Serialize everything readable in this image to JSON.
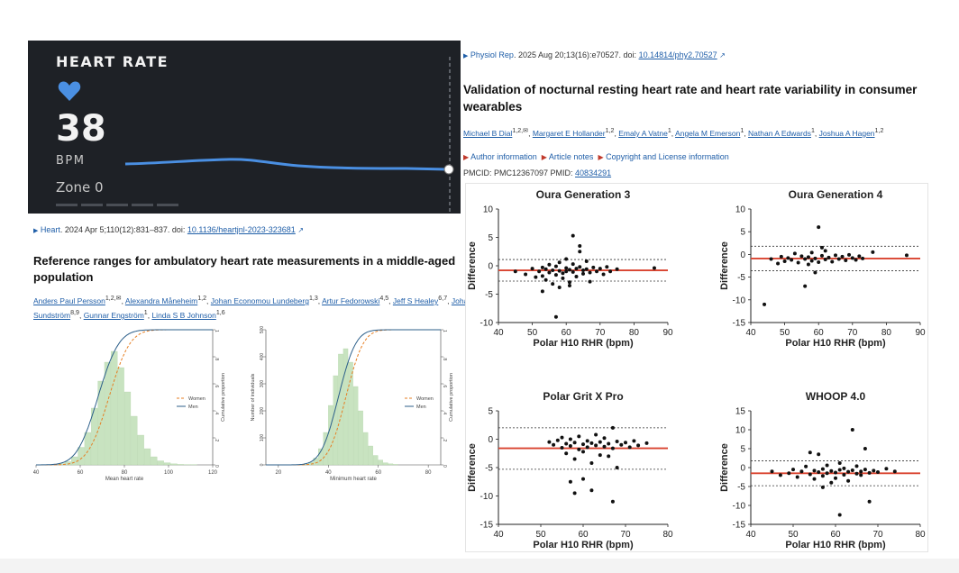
{
  "widget": {
    "title": "HEART RATE",
    "value": "38",
    "unit": "BPM",
    "zone": "Zone 0",
    "accent": "#4a8fe2"
  },
  "left_article": {
    "journal": "Heart",
    "citation": ". 2024 Apr 5;110(12):831–837. doi: ",
    "doi": "10.1136/heartjnl-2023-323681",
    "title": "Reference ranges for ambulatory heart rate measurements in a middle-aged population",
    "authors_line1": [
      "Anders Paul Persson",
      "Alexandra Måneheim",
      "Johan Economou Lundeberg",
      "Artur Fedorowski",
      "Jeff S Healey",
      "Johan"
    ],
    "authors_line1_sups": [
      "1,2,✉",
      "1,2",
      "1,3",
      "4,5",
      "6,7",
      ""
    ],
    "authors_line2": [
      "Sundström",
      "Gunnar Engström",
      "Linda S B Johnson"
    ],
    "authors_line2_sups": [
      "8,9",
      "1",
      "1,6"
    ]
  },
  "right_article": {
    "journal": "Physiol Rep",
    "citation": ". 2025 Aug 20;13(16):e70527. doi: ",
    "doi": "10.14814/phy2.70527",
    "title_line1": "Validation of nocturnal resting heart rate and heart rate variability in consumer",
    "title_line2": "wearables",
    "authors": [
      "Michael B Dial",
      "Margaret E Hollander",
      "Emaly A Vatne",
      "Angela M Emerson",
      "Nathan A Edwards",
      "Joshua A Hagen"
    ],
    "author_sups": [
      "1,2,✉",
      "1,2",
      "1",
      "1",
      "1",
      "1,2"
    ],
    "links": [
      "Author information",
      "Article notes",
      "Copyright and License information"
    ],
    "pmcid": "PMCID: PMC12367097  PMID: ",
    "pmid": "40834291"
  },
  "chart_data": [
    {
      "type": "bar+line",
      "xlabel": "Mean heart rate",
      "ylabel": "Number of individuals",
      "y2label": "Cumulative proportion",
      "xticks": [
        "40",
        "60",
        "80",
        "100",
        "120"
      ],
      "yticks": [
        "0",
        "100",
        "200",
        "300",
        "400",
        "500"
      ],
      "y2ticks": [
        "0",
        ".2",
        ".4",
        ".6",
        ".8",
        "1"
      ],
      "xlim": [
        40,
        120
      ],
      "ylim": [
        0,
        500
      ],
      "histogram": {
        "bin_start": 50,
        "bin_width": 3,
        "values": [
          5,
          12,
          30,
          65,
          120,
          210,
          310,
          380,
          420,
          360,
          270,
          180,
          110,
          60,
          30,
          15,
          8,
          4,
          2,
          1,
          1,
          0
        ]
      },
      "series": [
        {
          "name": "Women",
          "color": "#e67e22",
          "mean": 73,
          "sd": 7.5
        },
        {
          "name": "Men",
          "color": "#2c5f8a",
          "mean": 68,
          "sd": 7.5
        }
      ]
    },
    {
      "type": "bar+line",
      "xlabel": "Minimum heart rate",
      "ylabel": "Number of individuals",
      "y2label": "Cumulative proportion",
      "xticks": [
        "20",
        "40",
        "60",
        "80"
      ],
      "yticks": [
        "0",
        "100",
        "200",
        "300",
        "400",
        "500"
      ],
      "y2ticks": [
        "0",
        ".2",
        ".4",
        ".6",
        ".8",
        "1"
      ],
      "xlim": [
        15,
        85
      ],
      "ylim": [
        0,
        500
      ],
      "histogram": {
        "bin_start": 30,
        "bin_width": 2,
        "values": [
          3,
          10,
          25,
          60,
          120,
          220,
          330,
          410,
          430,
          380,
          290,
          200,
          120,
          70,
          35,
          18,
          8,
          4,
          2
        ]
      },
      "series": [
        {
          "name": "Women",
          "color": "#e67e22",
          "mean": 47,
          "sd": 5.5
        },
        {
          "name": "Men",
          "color": "#2c5f8a",
          "mean": 44,
          "sd": 5.5
        }
      ]
    },
    {
      "type": "scatter",
      "title": "Oura Generation 3",
      "xlabel": "Polar H10 RHR (bpm)",
      "ylabel": "Difference",
      "xlim": [
        40,
        90
      ],
      "ylim": [
        -10,
        10
      ],
      "xticks": [
        "40",
        "50",
        "60",
        "70",
        "80",
        "90"
      ],
      "yticks": [
        "10",
        "5",
        "0",
        "-5",
        "-10"
      ],
      "bias": -0.8,
      "loa": [
        1.1,
        -2.7
      ],
      "points": [
        [
          45,
          -1
        ],
        [
          48,
          -1.5
        ],
        [
          50,
          -0.5
        ],
        [
          51,
          -2
        ],
        [
          52,
          -1
        ],
        [
          53,
          -0.3
        ],
        [
          53,
          -1.8
        ],
        [
          54,
          -0.6
        ],
        [
          54,
          -2.5
        ],
        [
          55,
          -1.2
        ],
        [
          55,
          0.2
        ],
        [
          56,
          -0.8
        ],
        [
          56,
          -3.2
        ],
        [
          57,
          -0.1
        ],
        [
          57,
          -1.6
        ],
        [
          58,
          -0.9
        ],
        [
          58,
          0.6
        ],
        [
          59,
          -1.3
        ],
        [
          59,
          -2.2
        ],
        [
          60,
          -0.4
        ],
        [
          60,
          -1
        ],
        [
          60,
          1.2
        ],
        [
          61,
          -0.7
        ],
        [
          61,
          -3.5
        ],
        [
          62,
          -1.1
        ],
        [
          62,
          0.3
        ],
        [
          63,
          -0.5
        ],
        [
          63,
          -1.9
        ],
        [
          64,
          -0.2
        ],
        [
          64,
          2.5
        ],
        [
          65,
          -0.8
        ],
        [
          65,
          -1.4
        ],
        [
          66,
          -0.6
        ],
        [
          66,
          0.8
        ],
        [
          67,
          -1.2
        ],
        [
          67,
          -2.8
        ],
        [
          68,
          -0.3
        ],
        [
          69,
          -1
        ],
        [
          70,
          -0.5
        ],
        [
          71,
          -1.5
        ],
        [
          72,
          -0.2
        ],
        [
          73,
          -1
        ],
        [
          75,
          -0.6
        ],
        [
          57,
          -9
        ],
        [
          62,
          5.3
        ],
        [
          64,
          3.5
        ],
        [
          86,
          -0.4
        ],
        [
          53,
          -4.5
        ],
        [
          58,
          -3.8
        ],
        [
          61,
          -2.9
        ]
      ]
    },
    {
      "type": "scatter",
      "title": "Oura Generation 4",
      "xlabel": "Polar H10 RHR (bpm)",
      "ylabel": "Difference",
      "xlim": [
        40,
        90
      ],
      "ylim": [
        -15,
        10
      ],
      "xticks": [
        "40",
        "50",
        "60",
        "70",
        "80",
        "90"
      ],
      "yticks": [
        "10",
        "5",
        "0",
        "-5",
        "-10",
        "-15"
      ],
      "bias": -0.9,
      "loa": [
        1.8,
        -3.6
      ],
      "points": [
        [
          44,
          -11
        ],
        [
          46,
          -1
        ],
        [
          48,
          -2
        ],
        [
          49,
          -0.5
        ],
        [
          50,
          -1.5
        ],
        [
          51,
          -0.8
        ],
        [
          52,
          -1.2
        ],
        [
          53,
          0.2
        ],
        [
          54,
          -1.8
        ],
        [
          55,
          -0.4
        ],
        [
          56,
          -1
        ],
        [
          57,
          -0.6
        ],
        [
          57,
          -2.2
        ],
        [
          58,
          -1.4
        ],
        [
          58,
          0.4
        ],
        [
          59,
          -0.9
        ],
        [
          60,
          6
        ],
        [
          60,
          -1.7
        ],
        [
          61,
          -0.3
        ],
        [
          62,
          -1.1
        ],
        [
          62,
          0.8
        ],
        [
          63,
          -0.7
        ],
        [
          64,
          -1.6
        ],
        [
          65,
          -0.2
        ],
        [
          66,
          -1
        ],
        [
          67,
          -0.5
        ],
        [
          68,
          -1.3
        ],
        [
          69,
          -0.1
        ],
        [
          70,
          -0.8
        ],
        [
          71,
          -1.2
        ],
        [
          72,
          -0.4
        ],
        [
          73,
          -0.9
        ],
        [
          76,
          0.5
        ],
        [
          86,
          -0.2
        ],
        [
          56,
          -7
        ],
        [
          59,
          -4
        ],
        [
          61,
          1.5
        ]
      ]
    },
    {
      "type": "scatter",
      "title": "Polar Grit X Pro",
      "xlabel": "Polar H10 RHR (bpm)",
      "ylabel": "Difference",
      "xlim": [
        40,
        80
      ],
      "ylim": [
        -15,
        5
      ],
      "xticks": [
        "40",
        "50",
        "60",
        "70",
        "80"
      ],
      "yticks": [
        "5",
        "0",
        "-5",
        "-10",
        "-15"
      ],
      "bias": -1.6,
      "loa": [
        2,
        -5.3
      ],
      "points": [
        [
          52,
          -0.5
        ],
        [
          53,
          -1
        ],
        [
          54,
          -0.2
        ],
        [
          55,
          -1.5
        ],
        [
          55,
          0.3
        ],
        [
          56,
          -0.8
        ],
        [
          56,
          -2.5
        ],
        [
          57,
          -1.2
        ],
        [
          57,
          0
        ],
        [
          58,
          -0.6
        ],
        [
          58,
          -3.5
        ],
        [
          59,
          -1.8
        ],
        [
          59,
          0.5
        ],
        [
          60,
          -0.9
        ],
        [
          60,
          -2.2
        ],
        [
          61,
          -0.3
        ],
        [
          61,
          -1.4
        ],
        [
          62,
          -0.7
        ],
        [
          62,
          -4.2
        ],
        [
          63,
          -1.1
        ],
        [
          63,
          0.8
        ],
        [
          64,
          -0.5
        ],
        [
          64,
          -2.8
        ],
        [
          65,
          -1.3
        ],
        [
          65,
          0.2
        ],
        [
          66,
          -0.8
        ],
        [
          66,
          -3
        ],
        [
          67,
          -1.6
        ],
        [
          67,
          2
        ],
        [
          68,
          -0.4
        ],
        [
          68,
          -5
        ],
        [
          69,
          -1
        ],
        [
          70,
          -0.6
        ],
        [
          71,
          -1.4
        ],
        [
          72,
          -0.3
        ],
        [
          73,
          -1.1
        ],
        [
          75,
          -0.7
        ],
        [
          58,
          -9.5
        ],
        [
          60,
          -7
        ],
        [
          62,
          -9
        ],
        [
          67,
          -11
        ],
        [
          57,
          -7.5
        ]
      ]
    },
    {
      "type": "scatter",
      "title": "WHOOP 4.0",
      "xlabel": "Polar H10 RHR (bpm)",
      "ylabel": "Difference",
      "xlim": [
        40,
        80
      ],
      "ylim": [
        -15,
        15
      ],
      "xticks": [
        "40",
        "50",
        "60",
        "70",
        "80"
      ],
      "yticks": [
        "15",
        "10",
        "5",
        "0",
        "-5",
        "-10",
        "-15"
      ],
      "bias": -1.5,
      "loa": [
        1.8,
        -4.8
      ],
      "points": [
        [
          45,
          -1
        ],
        [
          47,
          -2
        ],
        [
          49,
          -1.5
        ],
        [
          50,
          -0.5
        ],
        [
          51,
          -2.5
        ],
        [
          52,
          -1
        ],
        [
          53,
          0.3
        ],
        [
          54,
          -1.8
        ],
        [
          54,
          4
        ],
        [
          55,
          -0.8
        ],
        [
          55,
          -3
        ],
        [
          56,
          -1.2
        ],
        [
          56,
          3.5
        ],
        [
          57,
          -0.4
        ],
        [
          57,
          -2.2
        ],
        [
          58,
          -1.5
        ],
        [
          58,
          0.6
        ],
        [
          59,
          -0.9
        ],
        [
          59,
          -4
        ],
        [
          60,
          -1.3
        ],
        [
          60,
          -2.8
        ],
        [
          61,
          -0.6
        ],
        [
          61,
          1.2
        ],
        [
          62,
          -1.9
        ],
        [
          62,
          -0.2
        ],
        [
          63,
          -1.1
        ],
        [
          63,
          -3.5
        ],
        [
          64,
          10
        ],
        [
          64,
          -0.7
        ],
        [
          65,
          -1.6
        ],
        [
          65,
          0.4
        ],
        [
          66,
          -2
        ],
        [
          66,
          -1
        ],
        [
          67,
          -0.5
        ],
        [
          67,
          5
        ],
        [
          68,
          -9
        ],
        [
          68,
          -1.4
        ],
        [
          69,
          -0.8
        ],
        [
          70,
          -1.2
        ],
        [
          72,
          -0.3
        ],
        [
          74,
          -1
        ],
        [
          61,
          -12.5
        ],
        [
          57,
          -5.2
        ]
      ]
    }
  ]
}
